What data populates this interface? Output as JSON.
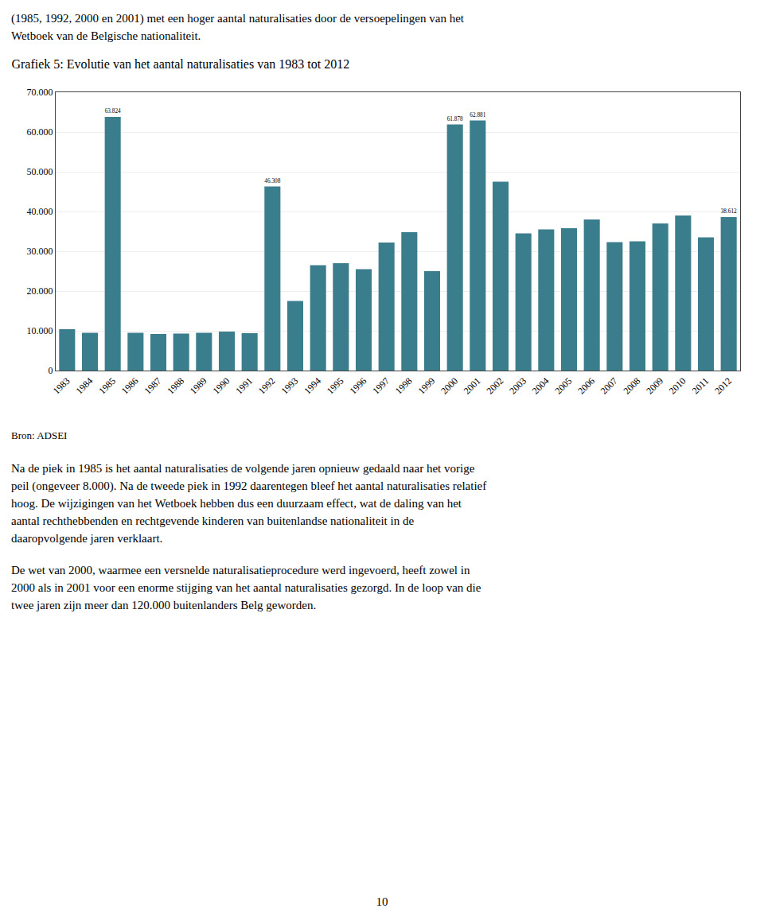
{
  "header": [
    "(1985, 1992, 2000 en 2001) met een hoger aantal naturalisaties door de versoepelingen van het",
    "Wetboek van de Belgische nationaliteit."
  ],
  "chart_data": {
    "type": "bar",
    "title": "Grafiek 5: Evolutie van het aantal naturalisaties van 1983 tot 2012",
    "categories": [
      "1983",
      "1984",
      "1985",
      "1986",
      "1987",
      "1988",
      "1989",
      "1990",
      "1991",
      "1992",
      "1993",
      "1994",
      "1995",
      "1996",
      "1997",
      "1998",
      "1999",
      "2000",
      "2001",
      "2002",
      "2003",
      "2004",
      "2005",
      "2006",
      "2007",
      "2008",
      "2009",
      "2010",
      "2011",
      "2012"
    ],
    "values": [
      10400,
      9500,
      63824,
      9500,
      9200,
      9300,
      9500,
      9800,
      9400,
      46308,
      17500,
      26500,
      27000,
      25500,
      32200,
      34800,
      25000,
      61878,
      62881,
      47500,
      34500,
      35500,
      35800,
      38000,
      32300,
      32500,
      37000,
      39000,
      33500,
      38612
    ],
    "value_labels": [
      null,
      null,
      "63.824",
      null,
      null,
      null,
      null,
      null,
      null,
      "46.308",
      null,
      null,
      null,
      null,
      null,
      null,
      null,
      "61.878",
      "62.881",
      null,
      null,
      null,
      null,
      null,
      null,
      null,
      null,
      null,
      null,
      "38.612"
    ],
    "color": "#3a7d8c",
    "ylim": [
      0,
      70000
    ],
    "yticks": [
      0,
      {
        "value": 10000,
        "label": "10.000"
      },
      {
        "value": 20000,
        "label": "20.000"
      },
      {
        "value": 30000,
        "label": "30.000"
      },
      {
        "value": 40000,
        "label": "40.000"
      },
      {
        "value": 50000,
        "label": "50.000"
      },
      {
        "value": 60000,
        "label": "60.000"
      },
      {
        "value": 70000,
        "label": "70.000"
      }
    ],
    "grid": true,
    "annotations": [
      "Bron: ADSEI"
    ]
  },
  "paragraphs": [
    [
      "Na de piek in 1985 is het aantal naturalisaties de volgende jaren opnieuw gedaald naar het vorige",
      "peil (ongeveer 8.000). Na de tweede piek in 1992 daarentegen bleef het aantal naturalisaties relatief",
      "hoog. De wijzigingen van het Wetboek hebben dus een duurzaam effect, wat de daling van het",
      "aantal rechthebbenden en rechtgevende kinderen van buitenlandse nationaliteit in de",
      "daaropvolgende jaren verklaart."
    ],
    [
      "De wet van 2000, waarmee een versnelde naturalisatieprocedure werd ingevoerd, heeft zowel in",
      "2000 als in 2001 voor een enorme stijging van het aantal naturalisaties gezorgd. In de loop van die",
      "twee jaren zijn meer dan 120.000 buitenlanders Belg geworden."
    ]
  ],
  "page_number": "10"
}
